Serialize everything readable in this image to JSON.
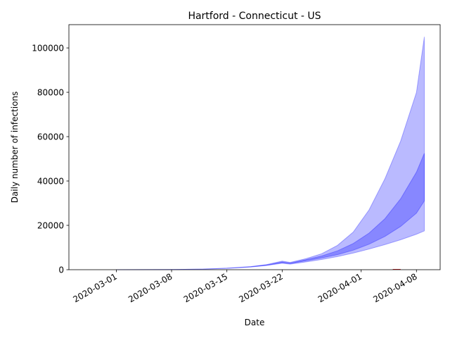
{
  "chart_data": {
    "type": "area",
    "title": "Hartford - Connecticut - US",
    "xlabel": "Date",
    "ylabel": "Daily number of infections",
    "xlim": [
      "2020-02-24",
      "2020-04-11"
    ],
    "ylim": [
      0,
      110500
    ],
    "x_ticks": [
      "2020-03-01",
      "2020-03-08",
      "2020-03-15",
      "2020-03-22",
      "2020-04-01",
      "2020-04-08"
    ],
    "y_ticks": [
      0,
      20000,
      40000,
      60000,
      80000,
      100000
    ],
    "y_tick_labels": [
      "0",
      "20000",
      "40000",
      "60000",
      "80000",
      "100000"
    ],
    "grid": false,
    "colors": {
      "band_fill": "#0000ff",
      "band_stroke": "#0000ff",
      "observed": "#d62728"
    },
    "series": [
      {
        "x": [
          "2020-03-01",
          "2020-03-08",
          "2020-03-12",
          "2020-03-15",
          "2020-03-18",
          "2020-03-20",
          "2020-03-22",
          "2020-03-23",
          "2020-03-25",
          "2020-03-27",
          "2020-03-29",
          "2020-03-31",
          "2020-04-02",
          "2020-04-04",
          "2020-04-06",
          "2020-04-08",
          "2020-04-09"
        ],
        "lower": [
          0,
          50,
          300,
          600,
          1200,
          1900,
          2900,
          2500,
          3500,
          4600,
          5900,
          7500,
          9300,
          11300,
          13500,
          16000,
          17500
        ],
        "upper": [
          0,
          50,
          300,
          700,
          1400,
          2300,
          3900,
          3300,
          5000,
          7200,
          11000,
          17000,
          27000,
          41000,
          58000,
          80000,
          105000
        ]
      },
      {
        "x": [
          "2020-03-01",
          "2020-03-08",
          "2020-03-12",
          "2020-03-15",
          "2020-03-18",
          "2020-03-20",
          "2020-03-22",
          "2020-03-23",
          "2020-03-25",
          "2020-03-27",
          "2020-03-29",
          "2020-03-31",
          "2020-04-02",
          "2020-04-04",
          "2020-04-06",
          "2020-04-08",
          "2020-04-09"
        ],
        "lower": [
          0,
          50,
          300,
          650,
          1300,
          2000,
          3200,
          2800,
          4000,
          5300,
          6800,
          8800,
          11500,
          15000,
          19500,
          25500,
          31000
        ],
        "upper": [
          0,
          50,
          300,
          650,
          1350,
          2100,
          3500,
          3000,
          4500,
          6200,
          8500,
          11800,
          16500,
          23000,
          32000,
          44000,
          52500
        ]
      }
    ],
    "observed": {
      "x": [
        "2020-04-05",
        "2020-04-06"
      ],
      "y": [
        150,
        150
      ]
    }
  }
}
